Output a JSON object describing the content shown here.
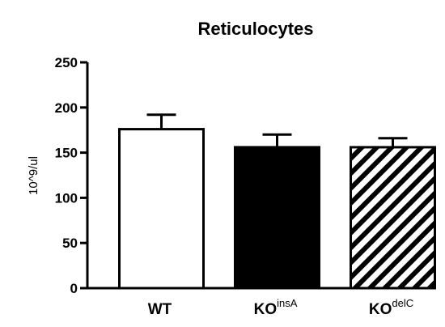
{
  "chart_data": {
    "type": "bar",
    "title": "Reticulocytes",
    "ylabel": "10^9/ul",
    "xlabel": "",
    "ylim": [
      0,
      250
    ],
    "yticks": [
      0,
      50,
      100,
      150,
      200,
      250
    ],
    "grid": false,
    "categories": [
      {
        "main": "WT",
        "sup": ""
      },
      {
        "main": "KO",
        "sup": "insA"
      },
      {
        "main": "KO",
        "sup": "delC"
      }
    ],
    "values": [
      176,
      156,
      156
    ],
    "error": [
      16,
      14,
      10
    ],
    "fills": [
      "white",
      "black",
      "hatched"
    ],
    "colors": {
      "stroke": "#000000",
      "background": "#ffffff"
    }
  }
}
